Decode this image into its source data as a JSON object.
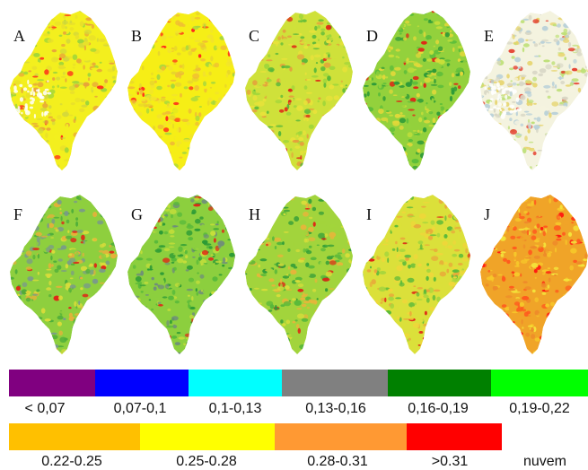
{
  "panels": [
    {
      "label": "A",
      "palette": [
        "#f3ef1e",
        "#e9e02a",
        "#d4d83a",
        "#9fd63a",
        "#e8a43a"
      ],
      "accent": "#ff2a1a",
      "has_cloud": true
    },
    {
      "label": "B",
      "palette": [
        "#f6ee16",
        "#f2e32c",
        "#e7d52c",
        "#f0bd34",
        "#a8d83c"
      ],
      "accent": "#ff2a1a",
      "has_cloud": false
    },
    {
      "label": "C",
      "palette": [
        "#cfe13a",
        "#9fd63a",
        "#e8e23a",
        "#e4a23c",
        "#59b83a"
      ],
      "accent": "#e02416",
      "has_cloud": false
    },
    {
      "label": "D",
      "palette": [
        "#93d13c",
        "#5cbd3a",
        "#c7df3a",
        "#2f9b38",
        "#e3d83a"
      ],
      "accent": "#e02416",
      "has_cloud": false
    },
    {
      "label": "E",
      "palette": [
        "#f4f3df",
        "#d8d7c6",
        "#bfe07a",
        "#e6d36a",
        "#b8d0d8"
      ],
      "accent": "#e53a2a",
      "has_cloud": true
    },
    {
      "label": "F",
      "palette": [
        "#8ecf3e",
        "#d9dc3a",
        "#4fae3a",
        "#7a9a8a",
        "#e6b03a"
      ],
      "accent": "#e02416",
      "has_cloud": false
    },
    {
      "label": "G",
      "palette": [
        "#8ccf3e",
        "#57b93a",
        "#c6de3a",
        "#6f8e7a",
        "#2b9a36"
      ],
      "accent": "#e02416",
      "has_cloud": false
    },
    {
      "label": "H",
      "palette": [
        "#a2d43c",
        "#d8dd3a",
        "#58b83a",
        "#e7b53a",
        "#2f9b38"
      ],
      "accent": "#e02416",
      "has_cloud": false
    },
    {
      "label": "I",
      "palette": [
        "#dbe03a",
        "#a7d63c",
        "#f0d63a",
        "#e9a93a",
        "#5cba3a"
      ],
      "accent": "#e02416",
      "has_cloud": false
    },
    {
      "label": "J",
      "palette": [
        "#f0a428",
        "#f6c82a",
        "#ff5a1e",
        "#f4e43a",
        "#ee8a2a"
      ],
      "accent": "#ff1a10",
      "has_cloud": false
    }
  ],
  "legend": {
    "row1": [
      {
        "label": "< 0,07",
        "color": "#800080"
      },
      {
        "label": "0,07-0,1",
        "color": "#0000ff"
      },
      {
        "label": "0,1-0,13",
        "color": "#00ffff"
      },
      {
        "label": "0,13-0,16",
        "color": "#808080"
      },
      {
        "label": "0,16-0,19",
        "color": "#008000"
      },
      {
        "label": "0,19-0,22",
        "color": "#00ff00"
      }
    ],
    "row2": [
      {
        "label": "0.22-0.25",
        "color": "#ffc000"
      },
      {
        "label": "0.25-0.28",
        "color": "#ffff00"
      },
      {
        "label": "0.28-0.31",
        "color": "#ff9933"
      },
      {
        "label": ">0.31",
        "color": "#ff0000"
      },
      {
        "label": "nuvem",
        "color": "#ffffff"
      }
    ]
  }
}
